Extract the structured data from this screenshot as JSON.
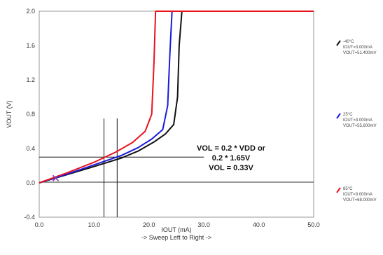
{
  "chart_data": {
    "type": "line",
    "xlabel": "IOUT (mA)",
    "xlabel_sub": "-> Sweep Left to Right ->",
    "ylabel": "VOUT (V)",
    "xlim": [
      0,
      50
    ],
    "ylim": [
      -0.4,
      2.0
    ],
    "x_ticks": [
      "0.0",
      "10.0",
      "20.0",
      "30.0",
      "40.0",
      "50.0"
    ],
    "y_ticks": [
      "-0.4",
      "0.0",
      "0.4",
      "0.8",
      "1.2",
      "1.6",
      "2.0"
    ],
    "grid": false,
    "series": [
      {
        "name": "-40°C",
        "color": "#111111",
        "legend_lines": [
          "-40°C",
          "IOUT=3.000mA",
          "VOUT=51.400mV"
        ],
        "x": [
          0,
          5,
          10,
          15,
          18,
          21,
          23,
          24.5,
          25.2,
          25.5,
          26.0
        ],
        "y": [
          0,
          0.095,
          0.19,
          0.29,
          0.37,
          0.48,
          0.57,
          0.68,
          1.0,
          1.6,
          2.0
        ]
      },
      {
        "name": "25°C",
        "color": "#1a1adc",
        "legend_lines": [
          "25°C",
          "IOUT=3.000mA",
          "VOUT=55.600mV"
        ],
        "x": [
          0,
          5,
          10,
          15,
          18,
          20.5,
          22.5,
          23.4,
          23.8,
          24.2
        ],
        "y": [
          0,
          0.1,
          0.21,
          0.32,
          0.41,
          0.51,
          0.62,
          0.9,
          1.5,
          2.0
        ]
      },
      {
        "name": "85°C",
        "color": "#e8141e",
        "legend_lines": [
          "85°C",
          "IOUT=3.000mA",
          "VOUT=68.000mV"
        ],
        "x": [
          0,
          5,
          10,
          14,
          17,
          19.3,
          20.5,
          20.9,
          21.2,
          50
        ],
        "y": [
          0,
          0.115,
          0.24,
          0.36,
          0.47,
          0.6,
          0.8,
          1.4,
          2.0,
          2.0
        ]
      }
    ],
    "reference_lines": {
      "horizontal_y": 0.3,
      "horizontal_x_range": [
        0,
        30
      ],
      "vertical_1_x": 11.8,
      "vertical_2_x": 14.2,
      "vertical_y_range": [
        -0.4,
        0.75
      ]
    },
    "cursor": {
      "x": 3,
      "y": 0.055
    },
    "annotation_lines": [
      "VOL = 0.2 * VDD or",
      "0.2 * 1.65V",
      "VOL = 0.33V"
    ]
  }
}
